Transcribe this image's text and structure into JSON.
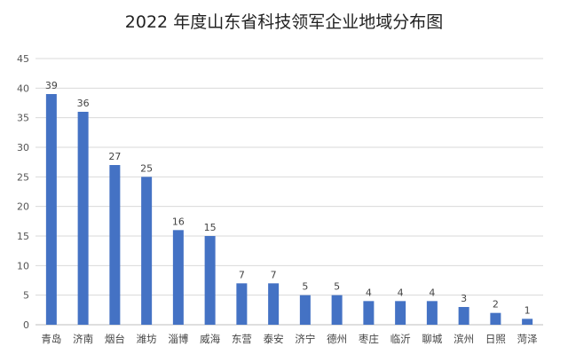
{
  "chart_data": {
    "type": "bar",
    "title": "2022 年度山东省科技领军企业地域分布图",
    "categories": [
      "青岛",
      "济南",
      "烟台",
      "潍坊",
      "淄博",
      "威海",
      "东营",
      "泰安",
      "济宁",
      "德州",
      "枣庄",
      "临沂",
      "聊城",
      "滨州",
      "日照",
      "菏泽"
    ],
    "values": [
      39,
      36,
      27,
      25,
      16,
      15,
      7,
      7,
      5,
      5,
      4,
      4,
      4,
      3,
      2,
      1
    ],
    "ylim": [
      0,
      45
    ],
    "yticks": [
      0,
      5,
      10,
      15,
      20,
      25,
      30,
      35,
      40,
      45
    ],
    "xlabel": "",
    "ylabel": "",
    "grid": true,
    "bar_color": "#4472c4",
    "data_labels": true
  }
}
